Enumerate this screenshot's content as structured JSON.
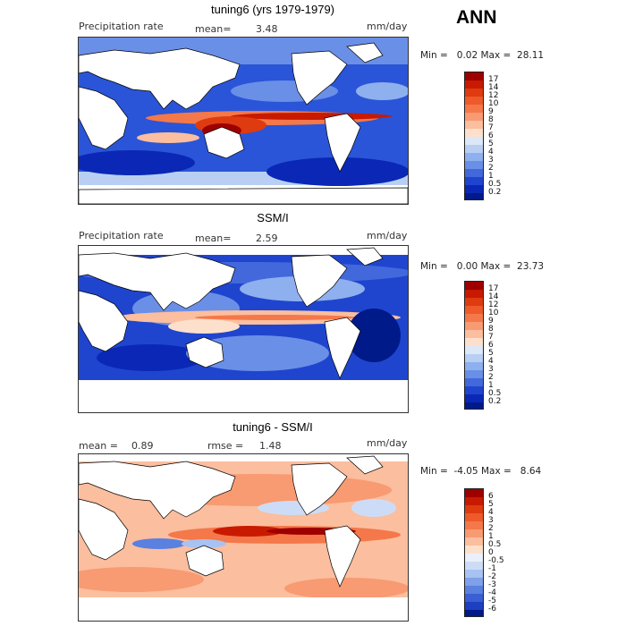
{
  "header": {
    "season": "ANN"
  },
  "panels": [
    {
      "title": "tuning6 (yrs 1979-1979)",
      "left_label": "Precipitation rate",
      "center_label": "mean=",
      "center_value": "3.48",
      "units": "mm/day",
      "range_text": "Min =   0.02 Max =  28.11",
      "colorbar_labels": [
        "17",
        "14",
        "12",
        "10",
        "9",
        "8",
        "7",
        "6",
        "5",
        "4",
        "3",
        "2",
        "1",
        "0.5",
        "0.2"
      ],
      "colors": [
        "#9e0000",
        "#c81a00",
        "#de3b10",
        "#ee5a2a",
        "#f4784a",
        "#f89a72",
        "#fbbe9e",
        "#fde0cc",
        "#dce8f8",
        "#b8cff3",
        "#8fb0ee",
        "#6a8fe6",
        "#4268dc",
        "#1f45cf",
        "#0a28b5",
        "#001a8a"
      ]
    },
    {
      "title": "SSM/I",
      "left_label": "Precipitation rate",
      "center_label": "mean=",
      "center_value": "2.59",
      "units": "mm/day",
      "range_text": "Min =   0.00 Max =  23.73",
      "colorbar_labels": [
        "17",
        "14",
        "12",
        "10",
        "9",
        "8",
        "7",
        "6",
        "5",
        "4",
        "3",
        "2",
        "1",
        "0.5",
        "0.2"
      ],
      "colors": [
        "#9e0000",
        "#c81a00",
        "#de3b10",
        "#ee5a2a",
        "#f4784a",
        "#f89a72",
        "#fbbe9e",
        "#fde0cc",
        "#dce8f8",
        "#b8cff3",
        "#8fb0ee",
        "#6a8fe6",
        "#4268dc",
        "#1f45cf",
        "#0a28b5",
        "#001a8a"
      ]
    },
    {
      "title": "tuning6 - SSM/I",
      "left_label": "mean =",
      "left_value": "0.89",
      "center_label": "rmse =",
      "center_value": "1.48",
      "units": "mm/day",
      "range_text": "Min =  -4.05 Max =   8.64",
      "colorbar_labels": [
        "6",
        "5",
        "4",
        "3",
        "2",
        "1",
        "0.5",
        "0",
        "-0.5",
        "-1",
        "-2",
        "-3",
        "-4",
        "-5",
        "-6"
      ],
      "colors": [
        "#9e0000",
        "#c81a00",
        "#de3b10",
        "#ee5a2a",
        "#f4784a",
        "#f89a72",
        "#fbbe9e",
        "#fde0cc",
        "#eaf0fb",
        "#cddcf6",
        "#a8c2f1",
        "#7fa0ea",
        "#5a80e0",
        "#3a5fd4",
        "#1d3fc0",
        "#001a8a"
      ]
    }
  ]
}
